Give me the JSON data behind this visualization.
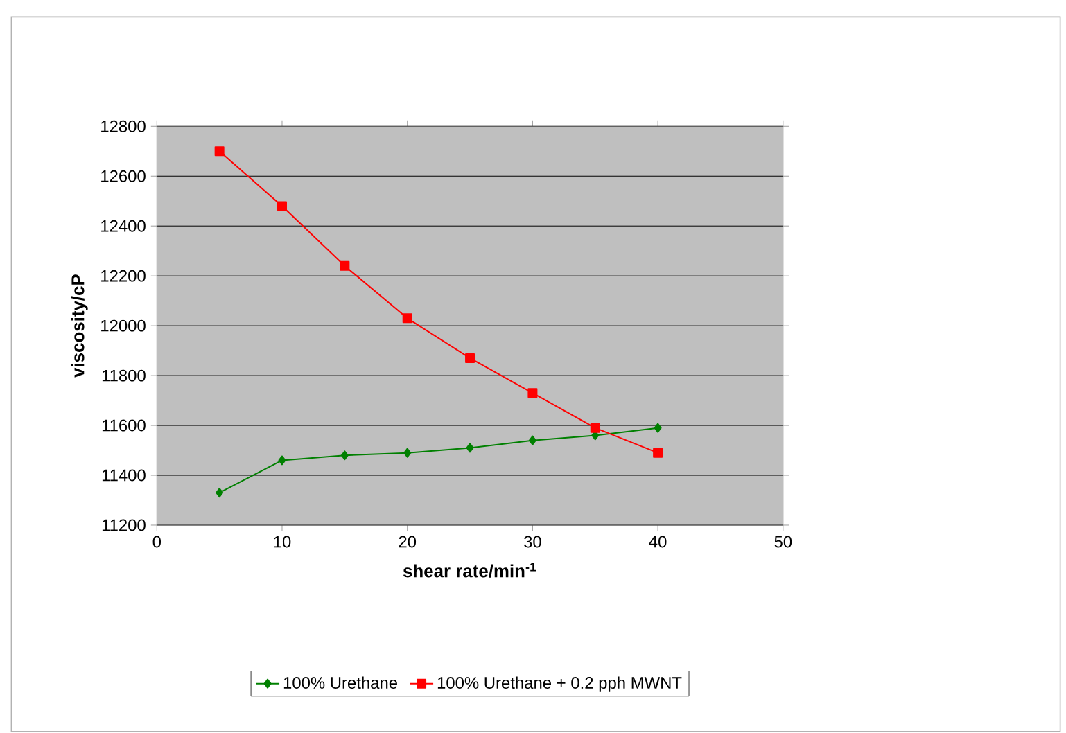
{
  "chart_data": {
    "type": "line",
    "xlabel": "shear rate/min$^{-1}$",
    "ylabel": "viscosity/cP",
    "x": [
      5,
      10,
      15,
      20,
      25,
      30,
      35,
      40
    ],
    "series": [
      {
        "name": "100% Urethane",
        "color": "#008000",
        "marker": "diamond",
        "values": [
          11330,
          11460,
          11480,
          11490,
          11510,
          11540,
          11560,
          11590
        ]
      },
      {
        "name": "100% Urethane + 0.2 pph MWNT",
        "color": "#ff0000",
        "marker": "square",
        "values": [
          12700,
          12480,
          12240,
          12030,
          11870,
          11730,
          11590,
          11490
        ]
      }
    ],
    "xlim": [
      0,
      50
    ],
    "ylim": [
      11200,
      12800
    ],
    "xticks": [
      0,
      10,
      20,
      30,
      40,
      50
    ],
    "yticks": [
      11200,
      11400,
      11600,
      11800,
      12000,
      12200,
      12400,
      12600,
      12800
    ],
    "grid": "y",
    "legend": "bottom",
    "line_style": "solid"
  }
}
